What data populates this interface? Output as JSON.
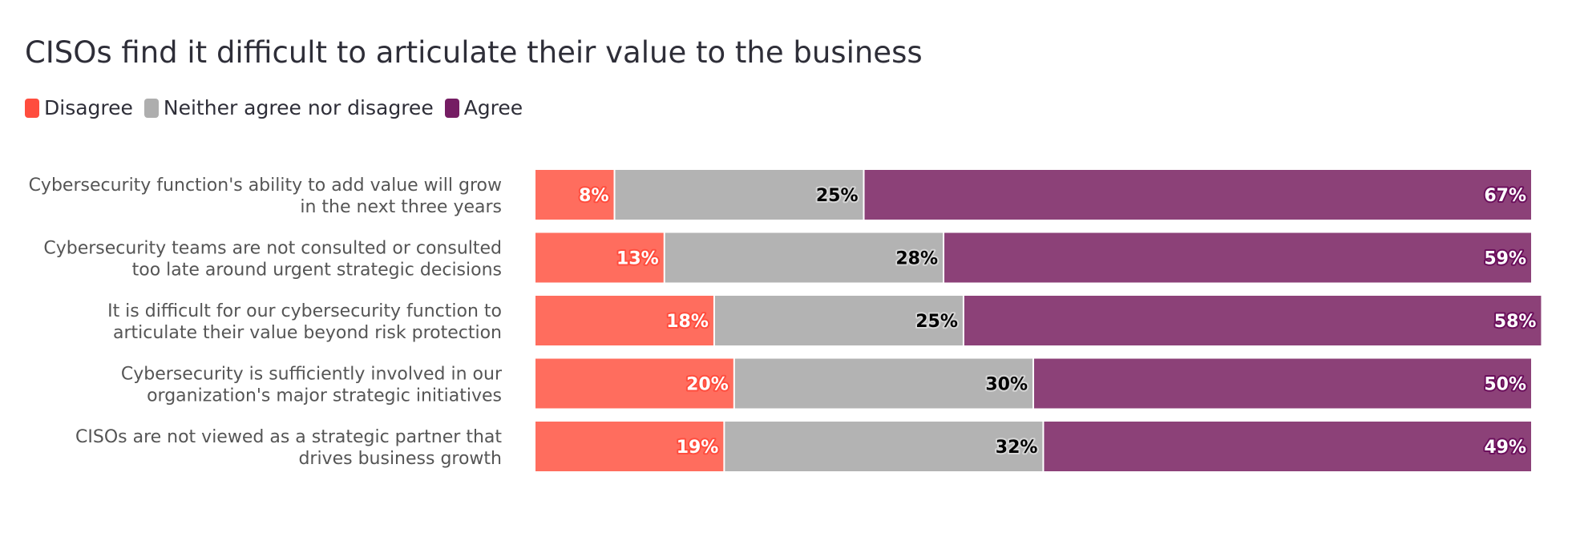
{
  "chart_data": {
    "type": "bar",
    "orientation": "horizontal",
    "stacked": true,
    "title": "CISOs find it difficult to articulate their value to the business",
    "legend_position": "top-left",
    "grid": false,
    "xlim": [
      0,
      100
    ],
    "categories": [
      [
        "Cybersecurity function's ability to add value will grow",
        "in the next three years"
      ],
      [
        "Cybersecurity teams are not consulted or consulted",
        "too late around urgent strategic decisions"
      ],
      [
        "It is difficult for our cybersecurity function to",
        "articulate their value beyond risk protection"
      ],
      [
        "Cybersecurity is sufficiently involved in our",
        "organization's major strategic initiatives"
      ],
      [
        "CISOs are not viewed as a strategic partner that",
        "drives business growth"
      ]
    ],
    "series": [
      {
        "name": "Disagree",
        "color": "#ff6d5e",
        "label_color": "#ffffff",
        "label_outline": "#ff4d3e",
        "values": [
          8,
          13,
          18,
          20,
          19
        ]
      },
      {
        "name": "Neither agree nor disagree",
        "color": "#b3b3b3",
        "label_color": "#000000",
        "label_outline": "#d6d6d6",
        "values": [
          25,
          28,
          25,
          30,
          32
        ]
      },
      {
        "name": "Agree",
        "color": "#8c4178",
        "label_color": "#ffffff",
        "label_outline": "#6b0f5c",
        "values": [
          67,
          59,
          58,
          50,
          49
        ]
      }
    ],
    "value_suffix": "%",
    "legend_swatch_colors": [
      "#ff4d3e",
      "#aeaeae",
      "#751d63"
    ]
  }
}
